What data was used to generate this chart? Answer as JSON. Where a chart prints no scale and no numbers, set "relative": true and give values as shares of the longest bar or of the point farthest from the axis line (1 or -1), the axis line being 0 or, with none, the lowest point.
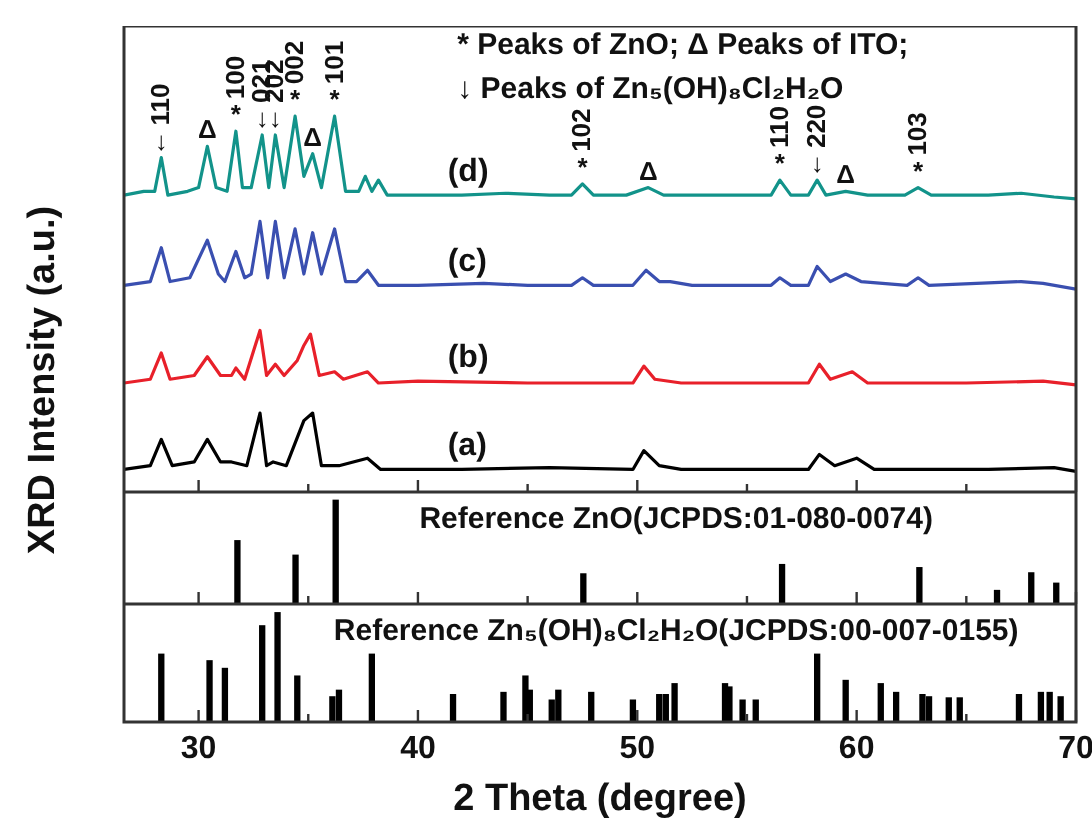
{
  "chart_data": [
    {
      "type": "line",
      "ylabel": "XRD Intensity (a.u.)",
      "relative": true,
      "xlim": [
        26.6,
        70
      ],
      "xticks": [
        30,
        {
          "value": 35,
          "label": null
        },
        40,
        {
          "value": 45,
          "label": null
        },
        50,
        {
          "value": 55,
          "label": null
        },
        60,
        {
          "value": 65,
          "label": null
        },
        70
      ],
      "tick_labels": false,
      "marker": "none",
      "legend": false,
      "grid": false,
      "annotations": [
        "* Peaks of ZnO; Δ Peaks of ITO;",
        "↓ Peaks of Zn₅(OH)₈Cl₂H₂O",
        {
          "text": "↓110",
          "x": 28.3,
          "y": 0.89
        },
        {
          "text": "Δ",
          "x": 30.4,
          "y": 0.92
        },
        {
          "text": "*100",
          "x": 31.7,
          "y": 0.96
        },
        {
          "text": "↓021",
          "x": 32.9,
          "y": 0.95
        },
        {
          "text": "↓202",
          "x": 33.5,
          "y": 0.95
        },
        {
          "text": "*002",
          "x": 34.4,
          "y": 1.0
        },
        {
          "text": "Δ",
          "x": 35.2,
          "y": 0.9
        },
        {
          "text": "*101",
          "x": 36.2,
          "y": 1.0
        },
        {
          "text": "*102",
          "x": 47.5,
          "y": 0.82
        },
        {
          "text": "Δ",
          "x": 50.5,
          "y": 0.81
        },
        {
          "text": "*110",
          "x": 56.5,
          "y": 0.83
        },
        {
          "text": "↓220",
          "x": 58.2,
          "y": 0.83
        },
        {
          "text": "Δ",
          "x": 59.5,
          "y": 0.8
        },
        {
          "text": "*103",
          "x": 62.8,
          "y": 0.81
        }
      ],
      "series": [
        {
          "name": "(d)",
          "color": "#12938a",
          "x": [
            26.6,
            27.5,
            28.0,
            28.3,
            28.6,
            29.5,
            30.0,
            30.4,
            30.8,
            31.3,
            31.7,
            32.0,
            32.4,
            32.9,
            33.2,
            33.5,
            33.9,
            34.4,
            34.8,
            35.2,
            35.6,
            36.2,
            36.7,
            37.3,
            37.6,
            37.9,
            38.2,
            38.6,
            40,
            42,
            44,
            46,
            47.0,
            47.5,
            48.0,
            49.5,
            50.5,
            51.2,
            53,
            55,
            56.1,
            56.5,
            57.0,
            57.8,
            58.2,
            58.6,
            59.5,
            60.5,
            62.2,
            62.8,
            63.4,
            66,
            67.5,
            69,
            70
          ],
          "values": [
            0.79,
            0.8,
            0.8,
            0.89,
            0.79,
            0.8,
            0.81,
            0.92,
            0.81,
            0.8,
            0.96,
            0.81,
            0.81,
            0.95,
            0.81,
            0.95,
            0.81,
            1.0,
            0.84,
            0.9,
            0.81,
            1.0,
            0.8,
            0.8,
            0.84,
            0.8,
            0.83,
            0.79,
            0.79,
            0.79,
            0.795,
            0.79,
            0.79,
            0.82,
            0.79,
            0.79,
            0.81,
            0.79,
            0.79,
            0.79,
            0.79,
            0.83,
            0.79,
            0.79,
            0.83,
            0.79,
            0.8,
            0.79,
            0.79,
            0.81,
            0.79,
            0.79,
            0.795,
            0.785,
            0.78
          ]
        },
        {
          "name": "(c)",
          "color": "#3a4fb0",
          "x": [
            26.6,
            27.8,
            28.3,
            28.7,
            29.6,
            30.4,
            30.9,
            31.2,
            31.7,
            32.1,
            32.4,
            32.8,
            33.15,
            33.5,
            33.9,
            34.4,
            34.8,
            35.2,
            35.6,
            36.2,
            36.7,
            37.2,
            37.7,
            38.2,
            40,
            43,
            45,
            47.0,
            47.5,
            48,
            49.8,
            50.4,
            51,
            51.5,
            52.5,
            55,
            56.1,
            56.5,
            57.0,
            57.8,
            58.2,
            58.8,
            59.5,
            60.2,
            62.3,
            62.8,
            63.3,
            67.5,
            68.5,
            70
          ],
          "values": [
            0.55,
            0.56,
            0.65,
            0.56,
            0.57,
            0.67,
            0.58,
            0.56,
            0.64,
            0.57,
            0.58,
            0.72,
            0.57,
            0.72,
            0.57,
            0.7,
            0.58,
            0.69,
            0.58,
            0.7,
            0.56,
            0.56,
            0.59,
            0.55,
            0.55,
            0.555,
            0.55,
            0.55,
            0.57,
            0.55,
            0.55,
            0.59,
            0.56,
            0.56,
            0.55,
            0.55,
            0.55,
            0.57,
            0.55,
            0.55,
            0.6,
            0.56,
            0.58,
            0.56,
            0.55,
            0.57,
            0.55,
            0.56,
            0.555,
            0.54
          ]
        },
        {
          "name": "(b)",
          "color": "#e8202a",
          "x": [
            26.6,
            27.8,
            28.3,
            28.7,
            29.8,
            30.4,
            31.0,
            31.5,
            31.7,
            32.1,
            32.8,
            33.1,
            33.5,
            33.9,
            34.5,
            34.8,
            35.1,
            35.5,
            36.2,
            36.6,
            37.7,
            38.2,
            40,
            45,
            49.8,
            50.3,
            50.8,
            52,
            56,
            57.8,
            58.3,
            58.8,
            59.8,
            60.5,
            65,
            68.5,
            70
          ],
          "values": [
            0.29,
            0.3,
            0.37,
            0.3,
            0.31,
            0.36,
            0.31,
            0.31,
            0.33,
            0.3,
            0.43,
            0.31,
            0.34,
            0.31,
            0.35,
            0.39,
            0.42,
            0.31,
            0.32,
            0.3,
            0.32,
            0.29,
            0.295,
            0.29,
            0.29,
            0.335,
            0.3,
            0.29,
            0.29,
            0.29,
            0.34,
            0.3,
            0.32,
            0.29,
            0.29,
            0.295,
            0.285
          ]
        },
        {
          "name": "(a)",
          "color": "#000000",
          "x": [
            26.6,
            27.8,
            28.3,
            28.8,
            29.8,
            30.4,
            31.0,
            31.5,
            32.2,
            32.8,
            33.1,
            33.4,
            34.0,
            34.8,
            35.2,
            35.6,
            36.4,
            37.7,
            38.3,
            42,
            46,
            49.8,
            50.3,
            51,
            52,
            57.8,
            58.3,
            59,
            60,
            60.8,
            66,
            69,
            70
          ],
          "values": [
            0.06,
            0.07,
            0.14,
            0.07,
            0.08,
            0.14,
            0.08,
            0.08,
            0.07,
            0.21,
            0.07,
            0.08,
            0.07,
            0.19,
            0.21,
            0.07,
            0.07,
            0.09,
            0.06,
            0.06,
            0.065,
            0.06,
            0.11,
            0.07,
            0.06,
            0.06,
            0.1,
            0.07,
            0.09,
            0.06,
            0.06,
            0.065,
            0.055
          ]
        }
      ]
    },
    {
      "type": "bar",
      "title": "Reference ZnO(JCPDS:01-080-0074)",
      "relative": true,
      "xlim": [
        26.6,
        70
      ],
      "xticks": [
        30,
        {
          "value": 35,
          "label": null
        },
        40,
        {
          "value": 45,
          "label": null
        },
        50,
        {
          "value": 55,
          "label": null
        },
        60,
        {
          "value": 65,
          "label": null
        },
        70
      ],
      "tick_labels": false,
      "legend": false,
      "grid": false,
      "color": "#000000",
      "x": [
        31.77,
        34.42,
        36.25,
        47.54,
        56.6,
        62.86,
        66.4,
        67.96,
        69.1
      ],
      "values": [
        0.61,
        0.47,
        1.0,
        0.29,
        0.38,
        0.35,
        0.13,
        0.3,
        0.2
      ]
    },
    {
      "type": "bar",
      "title": "Reference Zn₅(OH)₈Cl₂H₂O(JCPDS:00-007-0155)",
      "xlabel": "2 Theta (degree)",
      "relative": true,
      "xlim": [
        26.6,
        70
      ],
      "xticks": [
        30,
        {
          "value": 35,
          "label": null
        },
        40,
        {
          "value": 45,
          "label": null
        },
        50,
        {
          "value": 55,
          "label": null
        },
        60,
        {
          "value": 65,
          "label": null
        },
        70
      ],
      "tick_labels": "x",
      "legend": false,
      "grid": false,
      "color": "#000000",
      "x": [
        28.3,
        30.5,
        31.2,
        32.9,
        33.6,
        34.5,
        36.1,
        36.4,
        37.9,
        41.6,
        43.9,
        44.9,
        45.1,
        46.1,
        46.4,
        47.9,
        49.8,
        51.0,
        51.3,
        51.7,
        54.0,
        54.2,
        54.8,
        55.4,
        58.2,
        59.5,
        61.1,
        61.8,
        63.0,
        63.3,
        64.2,
        64.7,
        67.4,
        68.4,
        68.8,
        69.3
      ],
      "values": [
        0.62,
        0.56,
        0.49,
        0.88,
        1.0,
        0.42,
        0.23,
        0.29,
        0.62,
        0.25,
        0.27,
        0.42,
        0.29,
        0.2,
        0.29,
        0.27,
        0.2,
        0.25,
        0.25,
        0.35,
        0.35,
        0.32,
        0.2,
        0.2,
        0.62,
        0.38,
        0.35,
        0.27,
        0.25,
        0.23,
        0.22,
        0.22,
        0.25,
        0.27,
        0.27,
        0.23
      ]
    }
  ]
}
